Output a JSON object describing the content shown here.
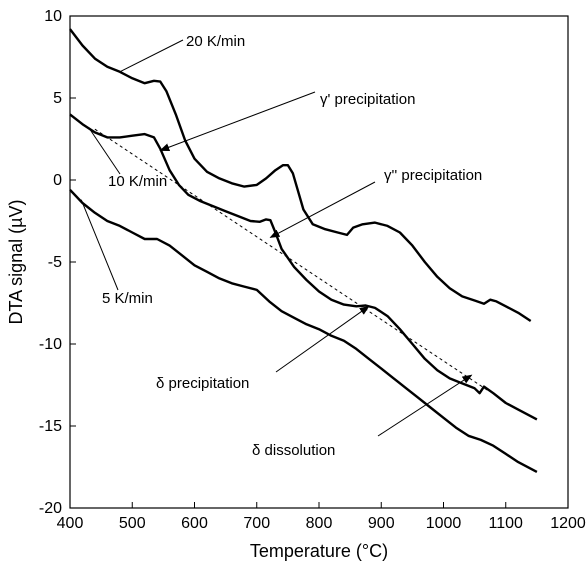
{
  "chart_data": {
    "type": "line",
    "xlabel": "Temperature (°C)",
    "ylabel": "DTA signal (µV)",
    "xlim": [
      400,
      1200
    ],
    "ylim": [
      -20,
      10
    ],
    "xticks": [
      "400",
      "500",
      "600",
      "700",
      "800",
      "900",
      "1000",
      "1100",
      "1200"
    ],
    "yticks": [
      "10",
      "5",
      "0",
      "-5",
      "-10",
      "-15",
      "-20"
    ],
    "grid": false,
    "legend": "none",
    "line_color": "#000000",
    "series": [
      {
        "name": "20 K/min",
        "x": [
          400,
          420,
          440,
          460,
          480,
          500,
          520,
          535,
          545,
          555,
          570,
          585,
          600,
          620,
          640,
          660,
          680,
          700,
          715,
          730,
          742,
          750,
          758,
          765,
          775,
          790,
          810,
          830,
          845,
          855,
          870,
          890,
          910,
          930,
          950,
          970,
          990,
          1010,
          1030,
          1050,
          1065,
          1075,
          1085,
          1100,
          1120,
          1140
        ],
        "y": [
          9.2,
          8.2,
          7.4,
          6.9,
          6.6,
          6.2,
          5.9,
          6.05,
          6.0,
          5.4,
          4.0,
          2.4,
          1.3,
          0.5,
          0.1,
          -0.2,
          -0.4,
          -0.3,
          0.1,
          0.6,
          0.9,
          0.9,
          0.4,
          -0.5,
          -1.8,
          -2.7,
          -3.0,
          -3.2,
          -3.35,
          -2.9,
          -2.7,
          -2.6,
          -2.8,
          -3.2,
          -4.0,
          -5.0,
          -5.9,
          -6.6,
          -7.1,
          -7.35,
          -7.55,
          -7.3,
          -7.4,
          -7.7,
          -8.1,
          -8.6
        ]
      },
      {
        "name": "10 K/min",
        "x": [
          400,
          420,
          440,
          460,
          480,
          500,
          520,
          535,
          545,
          560,
          575,
          590,
          610,
          630,
          650,
          670,
          690,
          705,
          715,
          722,
          730,
          740,
          760,
          780,
          800,
          820,
          840,
          860,
          875,
          890,
          910,
          930,
          950,
          970,
          990,
          1010,
          1030,
          1050,
          1058,
          1065,
          1080,
          1100,
          1120,
          1150
        ],
        "y": [
          4.0,
          3.4,
          2.9,
          2.6,
          2.6,
          2.7,
          2.8,
          2.6,
          1.9,
          0.6,
          -0.3,
          -0.9,
          -1.3,
          -1.6,
          -1.9,
          -2.2,
          -2.5,
          -2.55,
          -2.4,
          -2.45,
          -3.2,
          -4.2,
          -5.3,
          -6.1,
          -6.8,
          -7.3,
          -7.6,
          -7.7,
          -7.65,
          -7.8,
          -8.3,
          -9.1,
          -10.0,
          -10.9,
          -11.6,
          -12.1,
          -12.4,
          -12.7,
          -13.0,
          -12.6,
          -13.0,
          -13.6,
          -14.0,
          -14.6
        ]
      },
      {
        "name": "5 K/min",
        "x": [
          400,
          420,
          440,
          460,
          480,
          500,
          520,
          540,
          560,
          580,
          600,
          620,
          640,
          660,
          680,
          700,
          720,
          740,
          760,
          780,
          800,
          820,
          840,
          860,
          880,
          900,
          920,
          940,
          960,
          980,
          1000,
          1020,
          1040,
          1060,
          1080,
          1100,
          1120,
          1150
        ],
        "y": [
          -0.6,
          -1.4,
          -2.0,
          -2.5,
          -2.8,
          -3.2,
          -3.6,
          -3.6,
          -4.0,
          -4.6,
          -5.2,
          -5.6,
          -6.0,
          -6.3,
          -6.5,
          -6.7,
          -7.4,
          -8.0,
          -8.4,
          -8.8,
          -9.1,
          -9.5,
          -9.8,
          -10.3,
          -10.9,
          -11.5,
          -12.1,
          -12.7,
          -13.3,
          -13.9,
          -14.5,
          -15.1,
          -15.6,
          -15.85,
          -16.2,
          -16.7,
          -17.2,
          -17.8
        ]
      }
    ],
    "baseline": {
      "x": [
        440,
        1070
      ],
      "y": [
        3.1,
        -12.8
      ],
      "style": "dashed"
    },
    "annotations": [
      {
        "text": "20 K/min",
        "arrow": false,
        "point": [
          480,
          6.6
        ]
      },
      {
        "text": "γ' precipitation",
        "arrow": true,
        "point": [
          545,
          1.8
        ]
      },
      {
        "text": "10 K/min",
        "arrow": false,
        "point": [
          430,
          3.2
        ]
      },
      {
        "text": "γ'' precipitation",
        "arrow": true,
        "point": [
          722,
          -3.5
        ]
      },
      {
        "text": "5 K/min",
        "arrow": false,
        "point": [
          418,
          -1.2
        ]
      },
      {
        "text": "δ precipitation",
        "arrow": true,
        "point": [
          880,
          -7.7
        ]
      },
      {
        "text": "δ dissolution",
        "arrow": true,
        "point": [
          1045,
          -11.9
        ]
      }
    ]
  }
}
